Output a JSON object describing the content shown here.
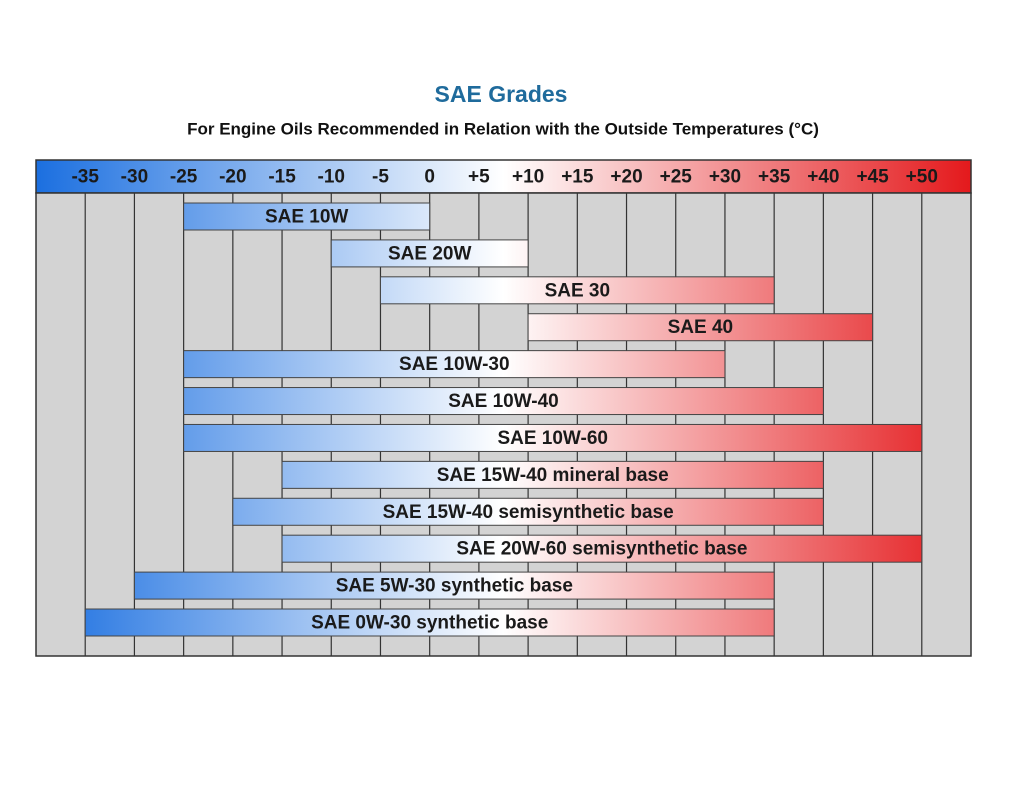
{
  "chart_data": {
    "type": "range-bar",
    "title": "SAE Grades",
    "subtitle": "For Engine Oils Recommended in Relation with the Outside Temperatures (°C)",
    "categories": [
      "SAE 10W",
      "SAE 20W",
      "SAE 30",
      "SAE 40",
      "SAE 10W-30",
      "SAE 10W-40",
      "SAE 10W-60",
      "SAE 15W-40 mineral base",
      "SAE 15W-40 semisynthetic base",
      "SAE 20W-60 semisynthetic base",
      "SAE 5W-30 synthetic base",
      "SAE 0W-30 synthetic base"
    ],
    "low": [
      -25,
      -10,
      -5,
      10,
      -25,
      -25,
      -25,
      -15,
      -20,
      -15,
      -30,
      -35
    ],
    "high": [
      0,
      10,
      35,
      45,
      30,
      40,
      50,
      40,
      40,
      50,
      35,
      35
    ],
    "xlim": [
      -40,
      55
    ],
    "xticks": [
      -35,
      -30,
      -25,
      -20,
      -15,
      -10,
      -5,
      0,
      {
        "value": 5,
        "label": "+5"
      },
      {
        "value": 10,
        "label": "+10"
      },
      {
        "value": 15,
        "label": "+15"
      },
      {
        "value": 20,
        "label": "+20"
      },
      {
        "value": 25,
        "label": "+25"
      },
      {
        "value": 30,
        "label": "+30"
      },
      {
        "value": 35,
        "label": "+35"
      },
      {
        "value": 40,
        "label": "+40"
      },
      {
        "value": 45,
        "label": "+45"
      },
      {
        "value": 50,
        "label": "+50"
      }
    ],
    "grid": true,
    "gradient": [
      "#1b6fe0",
      "#ffffff",
      "#e4191c"
    ]
  }
}
